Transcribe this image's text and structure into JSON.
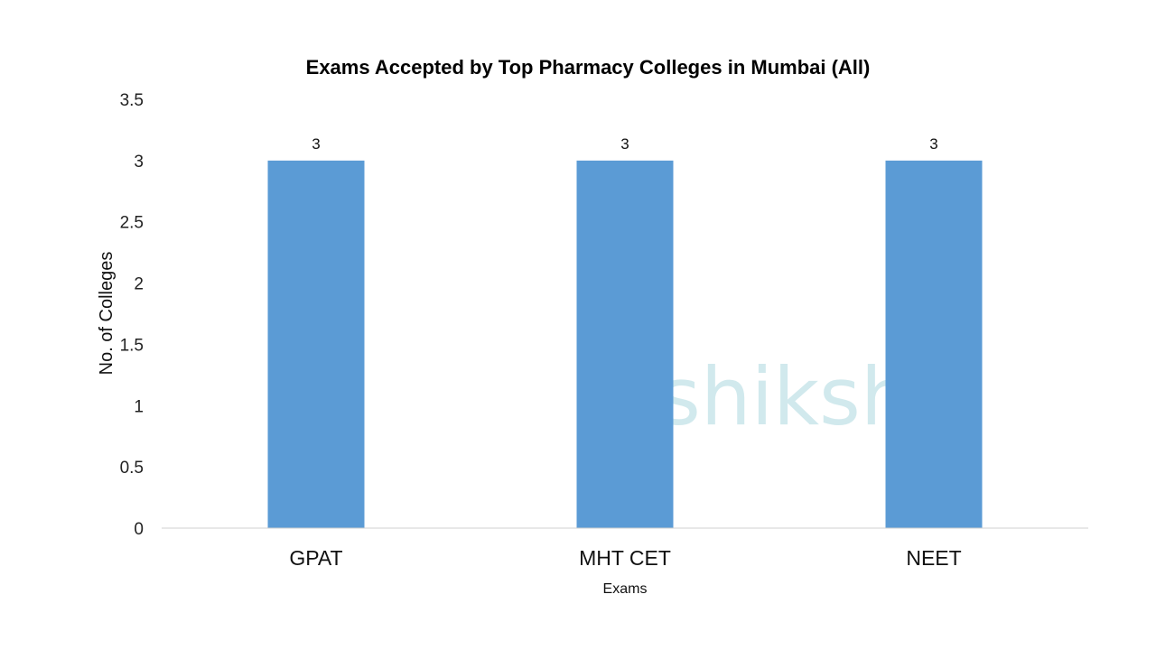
{
  "chart_data": {
    "type": "bar",
    "title": "Exams Accepted by Top Pharmacy Colleges in Mumbai (All)",
    "xlabel": "Exams",
    "ylabel": "No. of Colleges",
    "categories": [
      "GPAT",
      "MHT CET",
      "NEET"
    ],
    "values": [
      3,
      3,
      3
    ],
    "data_labels": [
      "3",
      "3",
      "3"
    ],
    "ylim": [
      0,
      3.5
    ],
    "yticks": [
      0,
      0.5,
      1,
      1.5,
      2,
      2.5,
      3,
      3.5
    ],
    "ytick_labels": [
      "0",
      "0.5",
      "1",
      "1.5",
      "2",
      "2.5",
      "3",
      "3.5"
    ],
    "grid": false,
    "legend": "none",
    "bar_color": "#5B9BD5"
  },
  "watermark": {
    "text": "shiksha",
    "text_color": "#C9E6EA",
    "icon_color": "#A9CCE6",
    "icon": "graduation-cap-person-icon"
  }
}
